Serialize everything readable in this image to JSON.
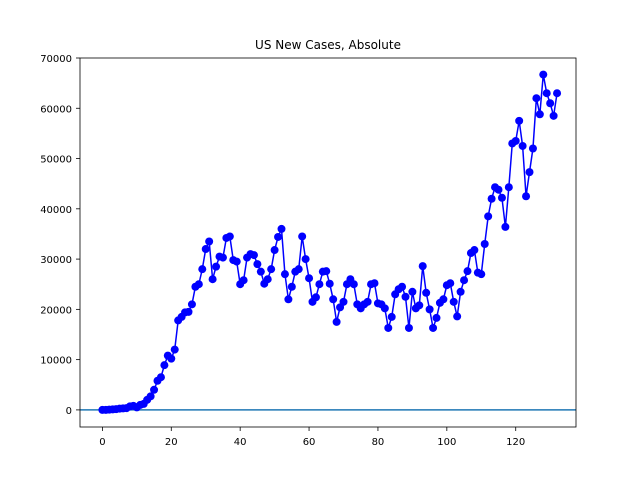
{
  "chart_data": {
    "type": "line",
    "title": "US New Cases, Absolute",
    "xlabel": "",
    "ylabel": "",
    "xlim": [
      -6.5,
      137.5
    ],
    "ylim": [
      -3400,
      70000
    ],
    "xticks": [
      0,
      20,
      40,
      60,
      80,
      100,
      120
    ],
    "yticks": [
      0,
      10000,
      20000,
      30000,
      40000,
      50000,
      60000,
      70000
    ],
    "grid": false,
    "legend": "none",
    "series": [
      {
        "color": "#0000ff",
        "marker": "circle",
        "values": [
          0,
          0,
          50,
          100,
          150,
          250,
          300,
          350,
          700,
          800,
          500,
          1000,
          1200,
          2000,
          2700,
          4000,
          5800,
          6500,
          8900,
          10800,
          10200,
          12000,
          17800,
          18500,
          19400,
          19500,
          21000,
          24500,
          25000,
          28000,
          32000,
          33500,
          26000,
          28500,
          30500,
          30300,
          34200,
          34500,
          29800,
          29500,
          25000,
          25800,
          30300,
          31000,
          30800,
          29000,
          27500,
          25100,
          26000,
          28000,
          31800,
          34400,
          36000,
          27000,
          22000,
          24500,
          27500,
          28000,
          34500,
          30000,
          26200,
          21500,
          22400,
          25000,
          27500,
          27600,
          25100,
          22000,
          17500,
          20400,
          21500,
          25000,
          26000,
          25000,
          21000,
          20200,
          21000,
          21500,
          25000,
          25200,
          21200,
          21000,
          20200,
          16300,
          18500,
          23000,
          24000,
          24500,
          22500,
          16300,
          23500,
          20200,
          20800,
          28600,
          23300,
          20000,
          16300,
          18300,
          21300,
          22000,
          24800,
          25200,
          21500,
          18600,
          23500,
          25800,
          27600,
          31200,
          31800,
          27300,
          27000,
          33000,
          38500,
          42000,
          44300,
          43800,
          42200,
          36400,
          44300,
          53000,
          53500,
          57500,
          52500,
          42500,
          47300,
          52000,
          62000,
          58800,
          66700,
          63000,
          61000,
          58500,
          63000
        ]
      }
    ],
    "reference_line": {
      "y": 0,
      "color": "#1f77b4"
    }
  }
}
